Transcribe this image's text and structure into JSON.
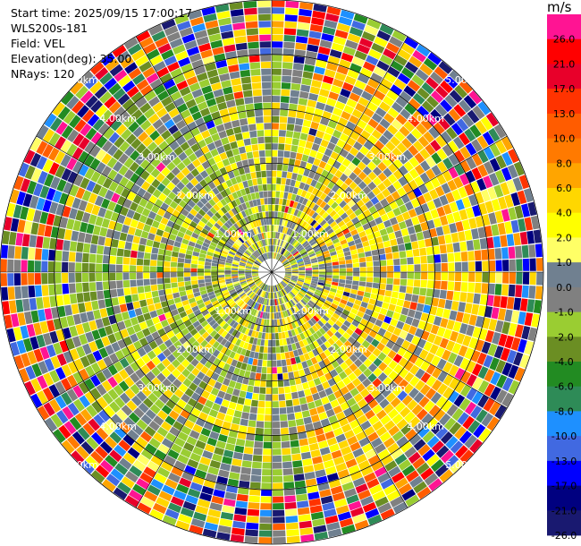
{
  "header": {
    "start_time": "Start time: 2025/09/15 17:00:17",
    "instrument": "WLS200s-181",
    "field": "Field: VEL",
    "elevation": "Elevation(deg): 35.00",
    "nrays": "NRays: 120"
  },
  "chart_data": {
    "type": "heatmap",
    "projection": "polar PPI",
    "field": "VEL",
    "n_rays": 120,
    "range_rings_km": [
      1.0,
      2.0,
      3.0,
      4.0,
      5.0
    ],
    "ring_labels": [
      "1.00km",
      "2.00km",
      "3.00km",
      "4.00km",
      "5.00km"
    ],
    "max_range_km": 5.0,
    "grid": true,
    "colorbar": {
      "unit": "m/s",
      "ticks": [
        "26.0",
        "21.0",
        "17.0",
        "13.0",
        "10.0",
        "8.0",
        "6.0",
        "4.0",
        "2.0",
        "1.0",
        "0.0",
        "-1.0",
        "-2.0",
        "-4.0",
        "-6.0",
        "-8.0",
        "-10.0",
        "-13.0",
        "-17.0",
        "-21.0",
        "-26.0",
        "-30.0"
      ],
      "colors": [
        "#ff1493",
        "#ff0000",
        "#e8002a",
        "#ff3300",
        "#ff5c00",
        "#ff7a00",
        "#ffa500",
        "#ffd700",
        "#ffff00",
        "#ffff66",
        "#708090",
        "#808080",
        "#9acd32",
        "#6b8e23",
        "#228b22",
        "#2e8b57",
        "#1e90ff",
        "#4169e1",
        "#0000ff",
        "#000080",
        "#191970"
      ]
    },
    "velocity_regimes_by_range": [
      {
        "range_km": [
          0.0,
          1.0
        ],
        "dominant": "gray / yellow / yellow-green (-2 to 2 m/s)"
      },
      {
        "range_km": [
          1.0,
          3.0
        ],
        "dominant": "yellow, gray and yellow-green (-2 to 4 m/s)"
      },
      {
        "range_km": [
          3.0,
          4.0
        ],
        "dominant": "yellow east, yellow-green west (-2 to 4 m/s)"
      },
      {
        "range_km": [
          4.0,
          5.0
        ],
        "dominant": "noisy, all colors (-30 to 26 m/s)"
      }
    ]
  }
}
